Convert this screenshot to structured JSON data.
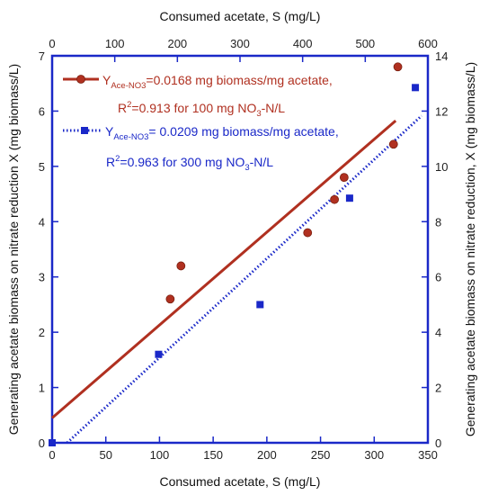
{
  "chart_data": {
    "type": "scatter",
    "x_bottom": {
      "label": "Consumed acetate, S (mg/L)",
      "range": [
        0,
        350
      ],
      "ticks": [
        0,
        50,
        100,
        150,
        200,
        250,
        300,
        350
      ]
    },
    "x_top": {
      "label": "Consumed acetate, S (mg/L)",
      "range": [
        0,
        600
      ],
      "ticks": [
        0,
        100,
        200,
        300,
        400,
        500,
        600
      ]
    },
    "y_left": {
      "label": "Generating acetate biomass on nitrate reduction X (mg biomass/L)",
      "range": [
        0,
        7
      ],
      "ticks": [
        0,
        1,
        2,
        3,
        4,
        5,
        6,
        7
      ]
    },
    "y_right": {
      "label": "Generating acetate biomass on nitrate reduction, X (mg biomass/L)",
      "range": [
        0,
        14
      ],
      "ticks": [
        0,
        2,
        4,
        6,
        8,
        10,
        12,
        14
      ]
    },
    "series": [
      {
        "axes": "bottom-left",
        "color": "#b03020",
        "marker": "circle",
        "points": [
          [
            110,
            2.6
          ],
          [
            120,
            3.2
          ],
          [
            238,
            3.8
          ],
          [
            263,
            4.4
          ],
          [
            272,
            4.8
          ],
          [
            318,
            5.4
          ],
          [
            322,
            6.8
          ]
        ],
        "fit": {
          "slope": 0.0168,
          "intercept": 0.45,
          "x_range": [
            0,
            320
          ]
        }
      },
      {
        "axes": "top-right",
        "color": "#1a28c8",
        "marker": "square",
        "points": [
          [
            0,
            0
          ],
          [
            170,
            3.2
          ],
          [
            332,
            5.0
          ],
          [
            475,
            8.85
          ],
          [
            580,
            12.85
          ]
        ],
        "fit": {
          "slope": 0.0209,
          "intercept": -0.5,
          "x_range": [
            24,
            590
          ]
        }
      }
    ],
    "legend": {
      "placement": "top-left",
      "entries": [
        {
          "line1_prefix": "Y",
          "line1_sub": "Ace-NO3",
          "line1_rest": "=0.0168 mg biomass/mg acetate,",
          "line2_prefix": "R",
          "line2_sup": "2",
          "line2_mid": "=0.913 for 100 mg NO",
          "line2_sub": "3",
          "line2_rest": "-N/L"
        },
        {
          "line1_prefix": "Y",
          "line1_sub": "Ace-NO3",
          "line1_rest": "= 0.0209 mg biomass/mg acetate,",
          "line2_prefix": "R",
          "line2_sup": "2",
          "line2_mid": "=0.963 for 300 mg NO",
          "line2_sub": "3",
          "line2_rest": "-N/L"
        }
      ]
    }
  }
}
